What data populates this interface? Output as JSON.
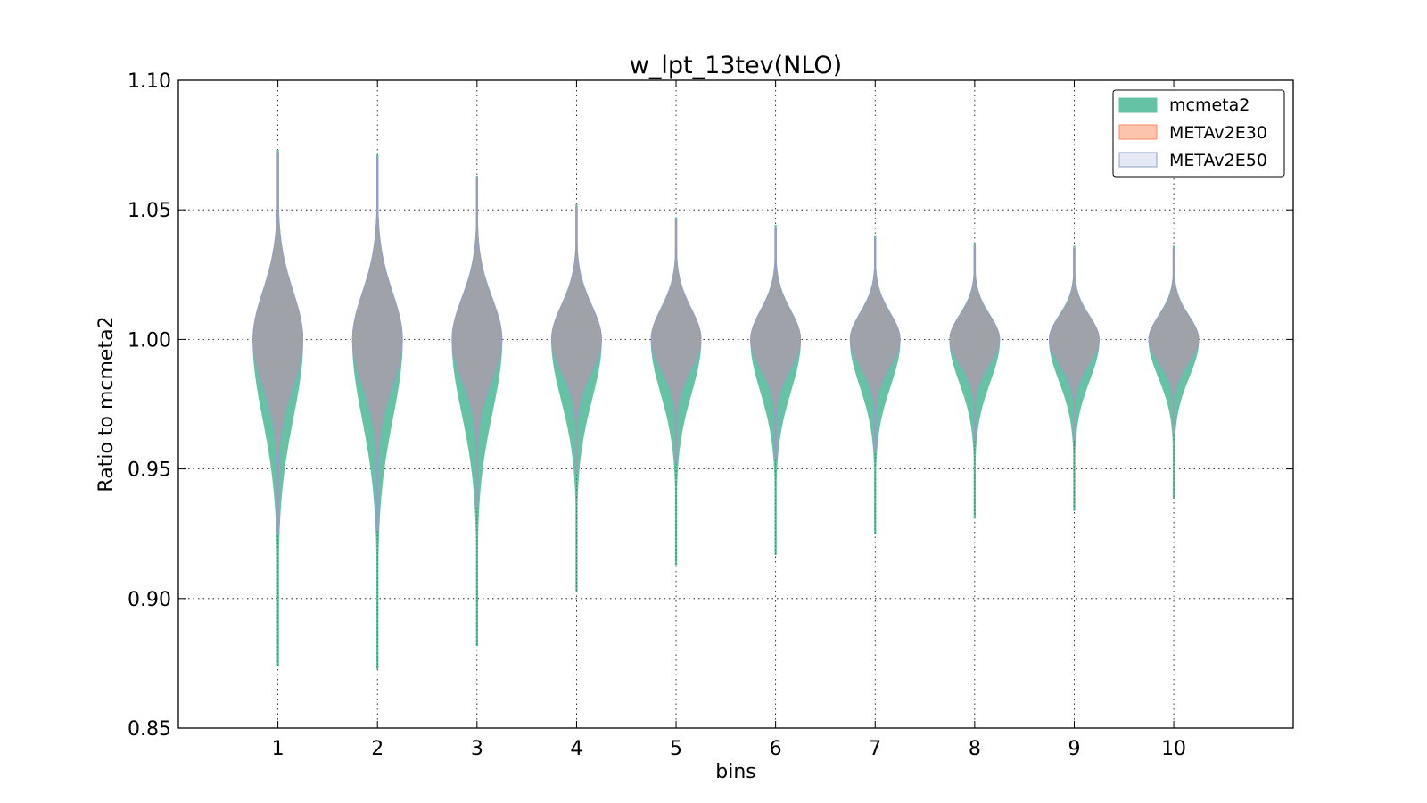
{
  "chart_data": {
    "type": "violin",
    "title": "w_lpt_13tev(NLO)",
    "xlabel": "bins",
    "ylabel": "Ratio to mcmeta2",
    "ylim": [
      0.85,
      1.1
    ],
    "xlim": [
      0,
      11.2
    ],
    "grid": true,
    "legend_position": "top-right",
    "categories": [
      "1",
      "2",
      "3",
      "4",
      "5",
      "6",
      "7",
      "8",
      "9",
      "10"
    ],
    "yticks": [
      "0.85",
      "0.90",
      "0.95",
      "1.00",
      "1.05",
      "1.10"
    ],
    "series": [
      {
        "name": "mcmeta2",
        "color": "#66c2a5",
        "min": [
          0.874,
          0.873,
          0.882,
          0.903,
          0.913,
          0.917,
          0.925,
          0.931,
          0.934,
          0.939
        ],
        "max": [
          1.073,
          1.071,
          1.063,
          1.052,
          1.047,
          1.044,
          1.04,
          1.037,
          1.036,
          1.036
        ],
        "center": [
          1.0,
          1.0,
          1.0,
          1.0,
          1.0,
          1.0,
          1.0,
          1.0,
          1.0,
          1.0
        ],
        "width": [
          0.5,
          0.5,
          0.5,
          0.5,
          0.5,
          0.5,
          0.5,
          0.5,
          0.5,
          0.5
        ]
      },
      {
        "name": "METAv2E30",
        "color": "#fc8d62",
        "min": [
          0.926,
          0.927,
          0.936,
          0.949,
          0.953,
          0.955,
          0.958,
          0.962,
          0.962,
          0.964
        ],
        "max": [
          1.072,
          1.07,
          1.062,
          1.051,
          1.046,
          1.043,
          1.039,
          1.036,
          1.035,
          1.035
        ],
        "center": [
          1.0,
          1.0,
          1.0,
          1.0,
          1.0,
          1.0,
          1.0,
          1.0,
          1.0,
          1.0
        ],
        "width": [
          0.5,
          0.5,
          0.5,
          0.5,
          0.5,
          0.5,
          0.5,
          0.5,
          0.5,
          0.5
        ]
      },
      {
        "name": "METAv2E50",
        "color": "#8da0cb",
        "min": [
          0.925,
          0.926,
          0.935,
          0.948,
          0.952,
          0.954,
          0.957,
          0.961,
          0.961,
          0.963
        ],
        "max": [
          1.072,
          1.07,
          1.062,
          1.051,
          1.046,
          1.043,
          1.039,
          1.036,
          1.035,
          1.035
        ],
        "center": [
          1.0,
          1.0,
          1.0,
          1.0,
          1.0,
          1.0,
          1.0,
          1.0,
          1.0,
          1.0
        ],
        "width": [
          0.5,
          0.5,
          0.5,
          0.5,
          0.5,
          0.5,
          0.5,
          0.5,
          0.5,
          0.5
        ]
      }
    ]
  }
}
